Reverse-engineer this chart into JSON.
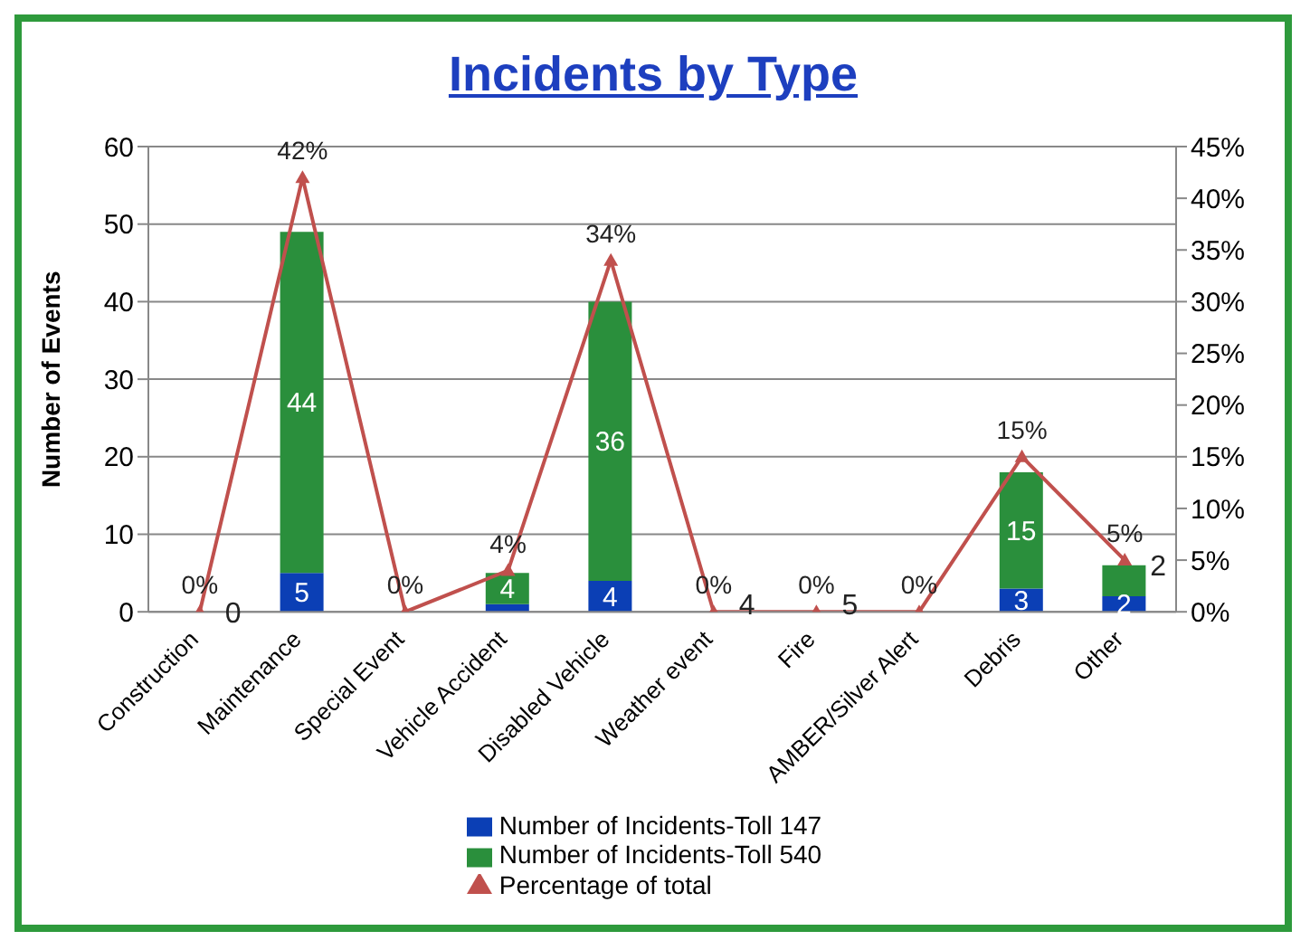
{
  "chart_data": {
    "type": "bar",
    "title": "Incidents by Type",
    "ylabel": "Number of Events",
    "categories": [
      "Construction",
      "Maintenance",
      "Special Event",
      "Vehicle Accident",
      "Disabled Vehicle",
      "Weather event",
      "Fire",
      "AMBER/Silver Alert",
      "Debris",
      "Other"
    ],
    "stacked": true,
    "series": [
      {
        "name": "Number of Incidents-Toll 147",
        "color": "#0b3fb5",
        "values": [
          0,
          5,
          0,
          1,
          4,
          0,
          0,
          0,
          3,
          2
        ],
        "value_labels": [
          null,
          "5",
          null,
          null,
          "4",
          null,
          null,
          null,
          "3",
          "2"
        ]
      },
      {
        "name": "Number of Incidents-Toll 540",
        "color": "#2a8f3c",
        "values": [
          0,
          44,
          0,
          4,
          36,
          0,
          0,
          0,
          15,
          4
        ],
        "value_labels": [
          null,
          "44",
          null,
          "4",
          "36",
          null,
          null,
          null,
          "15",
          null
        ]
      },
      {
        "name": "Percentage of total",
        "type": "line",
        "axis": "y2",
        "color": "#c0504d",
        "marker": "triangle",
        "values": [
          0,
          42,
          0,
          4,
          34,
          0,
          0,
          0,
          15,
          5
        ],
        "value_labels": [
          "0%",
          "42%",
          "0%",
          "4%",
          "34%",
          "0%",
          "0%",
          "0%",
          "15%",
          "5%"
        ]
      }
    ],
    "ylim": [
      0,
      60
    ],
    "yticks": [
      0,
      10,
      20,
      30,
      40,
      50,
      60
    ],
    "y2lim": [
      0,
      45
    ],
    "y2ticks": [
      {
        "value": 0,
        "label": "0%"
      },
      {
        "value": 5,
        "label": "5%"
      },
      {
        "value": 10,
        "label": "10%"
      },
      {
        "value": 15,
        "label": "15%"
      },
      {
        "value": 20,
        "label": "20%"
      },
      {
        "value": 25,
        "label": "25%"
      },
      {
        "value": 30,
        "label": "30%"
      },
      {
        "value": 35,
        "label": "35%"
      },
      {
        "value": 40,
        "label": "40%"
      },
      {
        "value": 45,
        "label": "45%"
      }
    ],
    "grid": "y",
    "legend": "bottom",
    "annotations": [
      {
        "text": "0",
        "x": "Construction",
        "y": 0
      },
      {
        "text": "4",
        "x": "Weather event",
        "y": 1
      },
      {
        "text": "5",
        "x": "Fire",
        "y": 1
      },
      {
        "text": "2",
        "x": "Other",
        "y": 6
      }
    ]
  }
}
